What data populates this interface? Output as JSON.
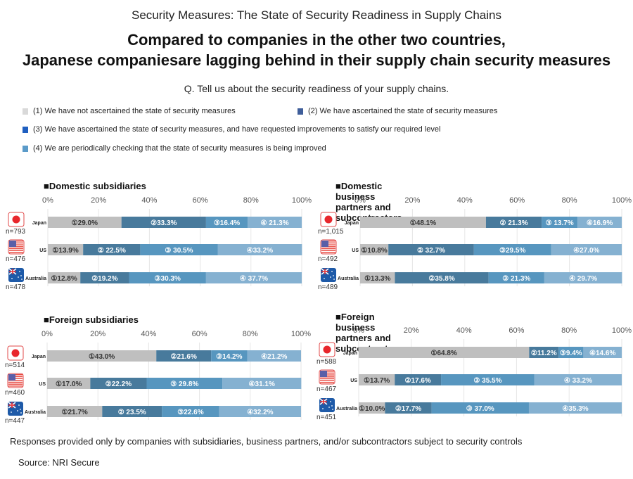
{
  "header": {
    "supertitle": "Security Measures: The State of Security Readiness in Supply Chains",
    "headline_line1": "Compared to companies in the other two countries,",
    "headline_line2": "Japanese companiesare lagging behind in their supply chain security measures",
    "question": "Q. Tell us about the security readiness of your supply chains."
  },
  "legend": [
    {
      "label": "(1) We have not ascertained the state of security measures",
      "color": "#d9d9d9",
      "icon": "light-gray-square"
    },
    {
      "label": "(2) We have ascertained the state of security measures",
      "color": "#3f5e9a",
      "icon": "slate-blue-square"
    },
    {
      "label": "(3) We have ascertained the state of security measures, and have requested improvements to satisfy our required level",
      "color": "#1f5fc0",
      "icon": "blue-square"
    },
    {
      "label": "(4) We are periodically checking that the state of security measures is being improved",
      "color": "#5b9bc9",
      "icon": "light-blue-square"
    }
  ],
  "colors": {
    "seg1": "#bfbfbf",
    "seg2": "#487a9c",
    "seg3": "#5796bf",
    "seg4": "#85b1d1",
    "grid": "#e6e6e6",
    "jp_flag_red": "#e8262c",
    "flag_border": "#e24a4a",
    "au_blue": "#1e5aa8"
  },
  "chart_data": [
    {
      "type": "bar",
      "orientation": "horizontal-stacked",
      "title": "■Domestic subsidiaries",
      "xlim": [
        0,
        100
      ],
      "xticks": [
        "0%",
        "20%",
        "40%",
        "60%",
        "80%",
        "100%"
      ],
      "grid": true,
      "categories": [
        {
          "country": "Japan",
          "flag": "japan-flag",
          "n": "n=793"
        },
        {
          "country": "US",
          "flag": "us-flag",
          "n": "n=476"
        },
        {
          "country": "Australia",
          "flag": "australia-flag",
          "n": "n=478"
        }
      ],
      "series": [
        {
          "name": "(1)",
          "values": [
            29.0,
            13.9,
            12.8
          ],
          "labels": [
            "①29.0%",
            "①13.9%",
            "①12.8%"
          ]
        },
        {
          "name": "(2)",
          "values": [
            33.3,
            22.5,
            19.2
          ],
          "labels": [
            "②33.3%",
            "② 22.5%",
            "②19.2%"
          ]
        },
        {
          "name": "(3)",
          "values": [
            16.4,
            30.5,
            30.3
          ],
          "labels": [
            "③16.4%",
            "③ 30.5%",
            "③30.3%"
          ]
        },
        {
          "name": "(4)",
          "values": [
            21.3,
            33.2,
            37.7
          ],
          "labels": [
            "④ 21.3%",
            "④33.2%",
            "④ 37.7%"
          ]
        }
      ]
    },
    {
      "type": "bar",
      "orientation": "horizontal-stacked",
      "title": "■Domestic business partners and subcontractors",
      "xlim": [
        0,
        100
      ],
      "xticks": [
        "0%",
        "20%",
        "40%",
        "60%",
        "80%",
        "100%"
      ],
      "grid": true,
      "categories": [
        {
          "country": "Japan",
          "flag": "japan-flag",
          "n": "n=1,015"
        },
        {
          "country": "US",
          "flag": "us-flag",
          "n": "n=492"
        },
        {
          "country": "Australia",
          "flag": "australia-flag",
          "n": "n=489"
        }
      ],
      "series": [
        {
          "name": "(1)",
          "values": [
            48.1,
            10.8,
            13.3
          ],
          "labels": [
            "①48.1%",
            "①10.8%",
            "①13.3%"
          ]
        },
        {
          "name": "(2)",
          "values": [
            21.3,
            32.7,
            35.8
          ],
          "labels": [
            "② 21.3%",
            "② 32.7%",
            "②35.8%"
          ]
        },
        {
          "name": "(3)",
          "values": [
            13.7,
            29.5,
            21.3
          ],
          "labels": [
            "③ 13.7%",
            "③29.5%",
            "③ 21.3%"
          ]
        },
        {
          "name": "(4)",
          "values": [
            16.9,
            27.0,
            29.7
          ],
          "labels": [
            "④16.9%",
            "④27.0%",
            "④ 29.7%"
          ]
        }
      ]
    },
    {
      "type": "bar",
      "orientation": "horizontal-stacked",
      "title": "■Foreign subsidiaries",
      "xlim": [
        0,
        100
      ],
      "xticks": [
        "0%",
        "20%",
        "40%",
        "60%",
        "80%",
        "100%"
      ],
      "grid": true,
      "categories": [
        {
          "country": "Japan",
          "flag": "japan-flag",
          "n": "n=514"
        },
        {
          "country": "US",
          "flag": "us-flag",
          "n": "n=460"
        },
        {
          "country": "Australia",
          "flag": "australia-flag",
          "n": "n=447"
        }
      ],
      "series": [
        {
          "name": "(1)",
          "values": [
            43.0,
            17.0,
            21.7
          ],
          "labels": [
            "①43.0%",
            "①17.0%",
            "①21.7%"
          ]
        },
        {
          "name": "(2)",
          "values": [
            21.6,
            22.2,
            23.5
          ],
          "labels": [
            "②21.6%",
            "②22.2%",
            "② 23.5%"
          ]
        },
        {
          "name": "(3)",
          "values": [
            14.2,
            29.8,
            22.6
          ],
          "labels": [
            "③14.2%",
            "③ 29.8%",
            "③22.6%"
          ]
        },
        {
          "name": "(4)",
          "values": [
            21.2,
            31.1,
            32.2
          ],
          "labels": [
            "④21.2%",
            "④31.1%",
            "④32.2%"
          ]
        }
      ]
    },
    {
      "type": "bar",
      "orientation": "horizontal-stacked",
      "title": "■Foreign business partners and subcontractors",
      "xlim": [
        0,
        100
      ],
      "xticks": [
        "0%",
        "20%",
        "40%",
        "60%",
        "80%",
        "100%"
      ],
      "grid": true,
      "categories": [
        {
          "country": "Japan",
          "flag": "japan-flag",
          "n": "n=588"
        },
        {
          "country": "US",
          "flag": "us-flag",
          "n": "n=467"
        },
        {
          "country": "Australia",
          "flag": "australia-flag",
          "n": "n=451"
        }
      ],
      "series": [
        {
          "name": "(1)",
          "values": [
            64.8,
            13.7,
            10.0
          ],
          "labels": [
            "①64.8%",
            "①13.7%",
            "①10.0%"
          ]
        },
        {
          "name": "(2)",
          "values": [
            11.2,
            17.6,
            17.7
          ],
          "labels": [
            "②11.2%",
            "②17.6%",
            "②17.7%"
          ]
        },
        {
          "name": "(3)",
          "values": [
            9.4,
            35.5,
            37.0
          ],
          "labels": [
            "③9.4%",
            "③ 35.5%",
            "③ 37.0%"
          ]
        },
        {
          "name": "(4)",
          "values": [
            14.6,
            33.2,
            35.3
          ],
          "labels": [
            "④14.6%",
            "④ 33.2%",
            "④35.3%"
          ]
        }
      ]
    }
  ],
  "footer": {
    "note": "Responses provided only by companies with subsidiaries, business partners, and/or subcontractors subject to security controls",
    "source": "Source: NRI Secure"
  }
}
